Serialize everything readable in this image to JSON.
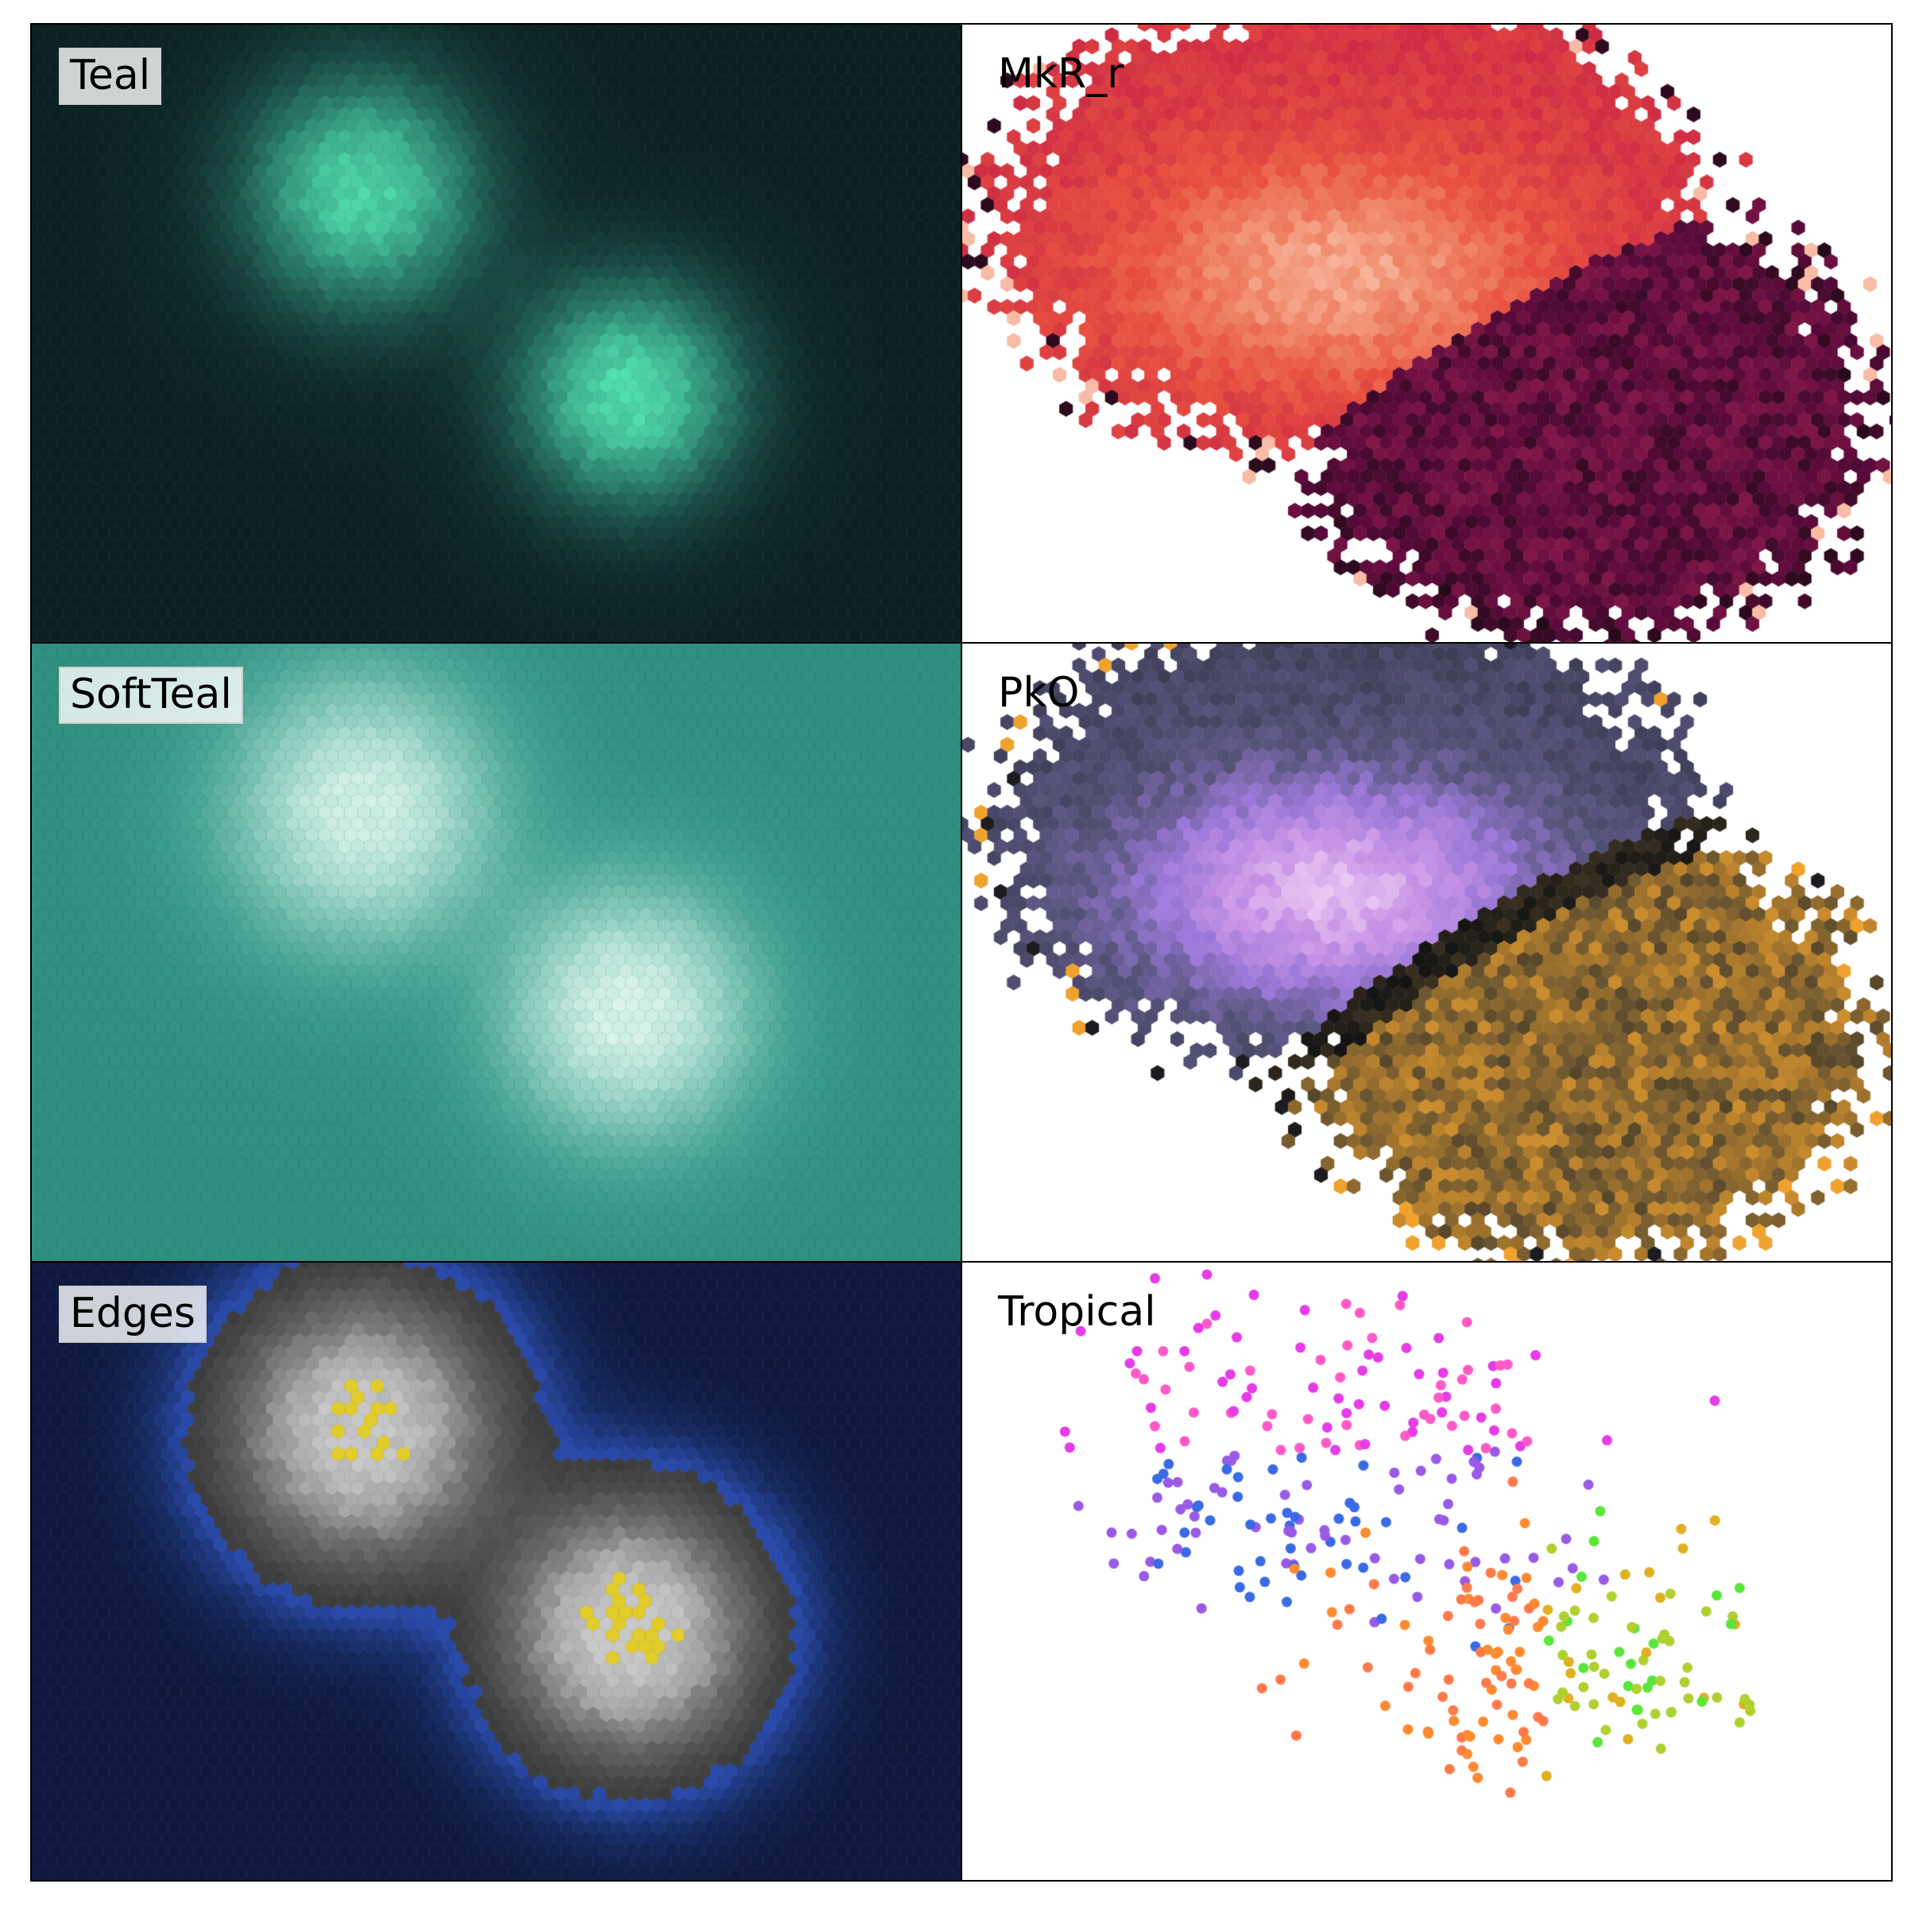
{
  "figure": {
    "layout": "3 rows x 2 columns grid of hexbin density panels"
  },
  "chart_data": [
    {
      "type": "heatmap",
      "kind": "hexbin density",
      "label": "Teal",
      "colormap": [
        "#0a1a1d",
        "#0f2a2b",
        "#1a4a45",
        "#2a7a68",
        "#3fb390",
        "#55e6b3"
      ],
      "label_box": true,
      "blobs": [
        {
          "center": [
            -1.0,
            0.75
          ],
          "weight": 0.95
        },
        {
          "center": [
            1.0,
            -0.75
          ],
          "weight": 1.0
        }
      ],
      "xlim": [
        -3.5,
        3.5
      ],
      "ylim": [
        -2.6,
        2.0
      ],
      "grid": false
    },
    {
      "type": "heatmap",
      "kind": "hexbin per-bin mean (sparse bins)",
      "label": "MkR_r",
      "colormap": [
        "#1a0a12",
        "#5a0a3a",
        "#8a1a4a",
        "#cc2a44",
        "#e8503f",
        "#f08a6a",
        "#fcd2c0"
      ],
      "label_box": false,
      "extent": "bins with counts only"
    },
    {
      "type": "heatmap",
      "kind": "hexbin density",
      "label": "SoftTeal",
      "colormap": [
        "#2a8a7a",
        "#4aa696",
        "#80c6b8",
        "#b5e2d6",
        "#e0f6ee"
      ],
      "label_box": true
    },
    {
      "type": "heatmap",
      "kind": "hexbin per-bin mean (sparse bins)",
      "label": "PkO",
      "colormap": [
        "#f1d2f6",
        "#c893e6",
        "#9a78d8",
        "#5a5680",
        "#3a3a50",
        "#141414",
        "#6a5530",
        "#a9782c",
        "#f0a22e"
      ],
      "label_box": false,
      "extent": "bins with counts only"
    },
    {
      "type": "heatmap",
      "kind": "hexbin density with threshold edges",
      "label": "Edges",
      "colormap": [
        "#0c1638",
        "#1a3270",
        "#2a4aaa",
        "#424242",
        "#7a7a7a",
        "#c0c0c0",
        "#e6d030"
      ],
      "label_box": true
    },
    {
      "type": "scatter",
      "label": "Tropical",
      "color_order": [
        "#e63ce6",
        "#ff5ac8",
        "#9a5ae6",
        "#3a6ae6",
        "#ff7a4a",
        "#ff8a30",
        "#b0d030",
        "#5ae63a",
        "#e0b020"
      ],
      "marker": "circle",
      "points": "approx. 360 points in two overlapping clusters",
      "xlim": [
        -3.5,
        3.5
      ],
      "ylim": [
        -2.6,
        2.0
      ],
      "grid": false
    }
  ]
}
